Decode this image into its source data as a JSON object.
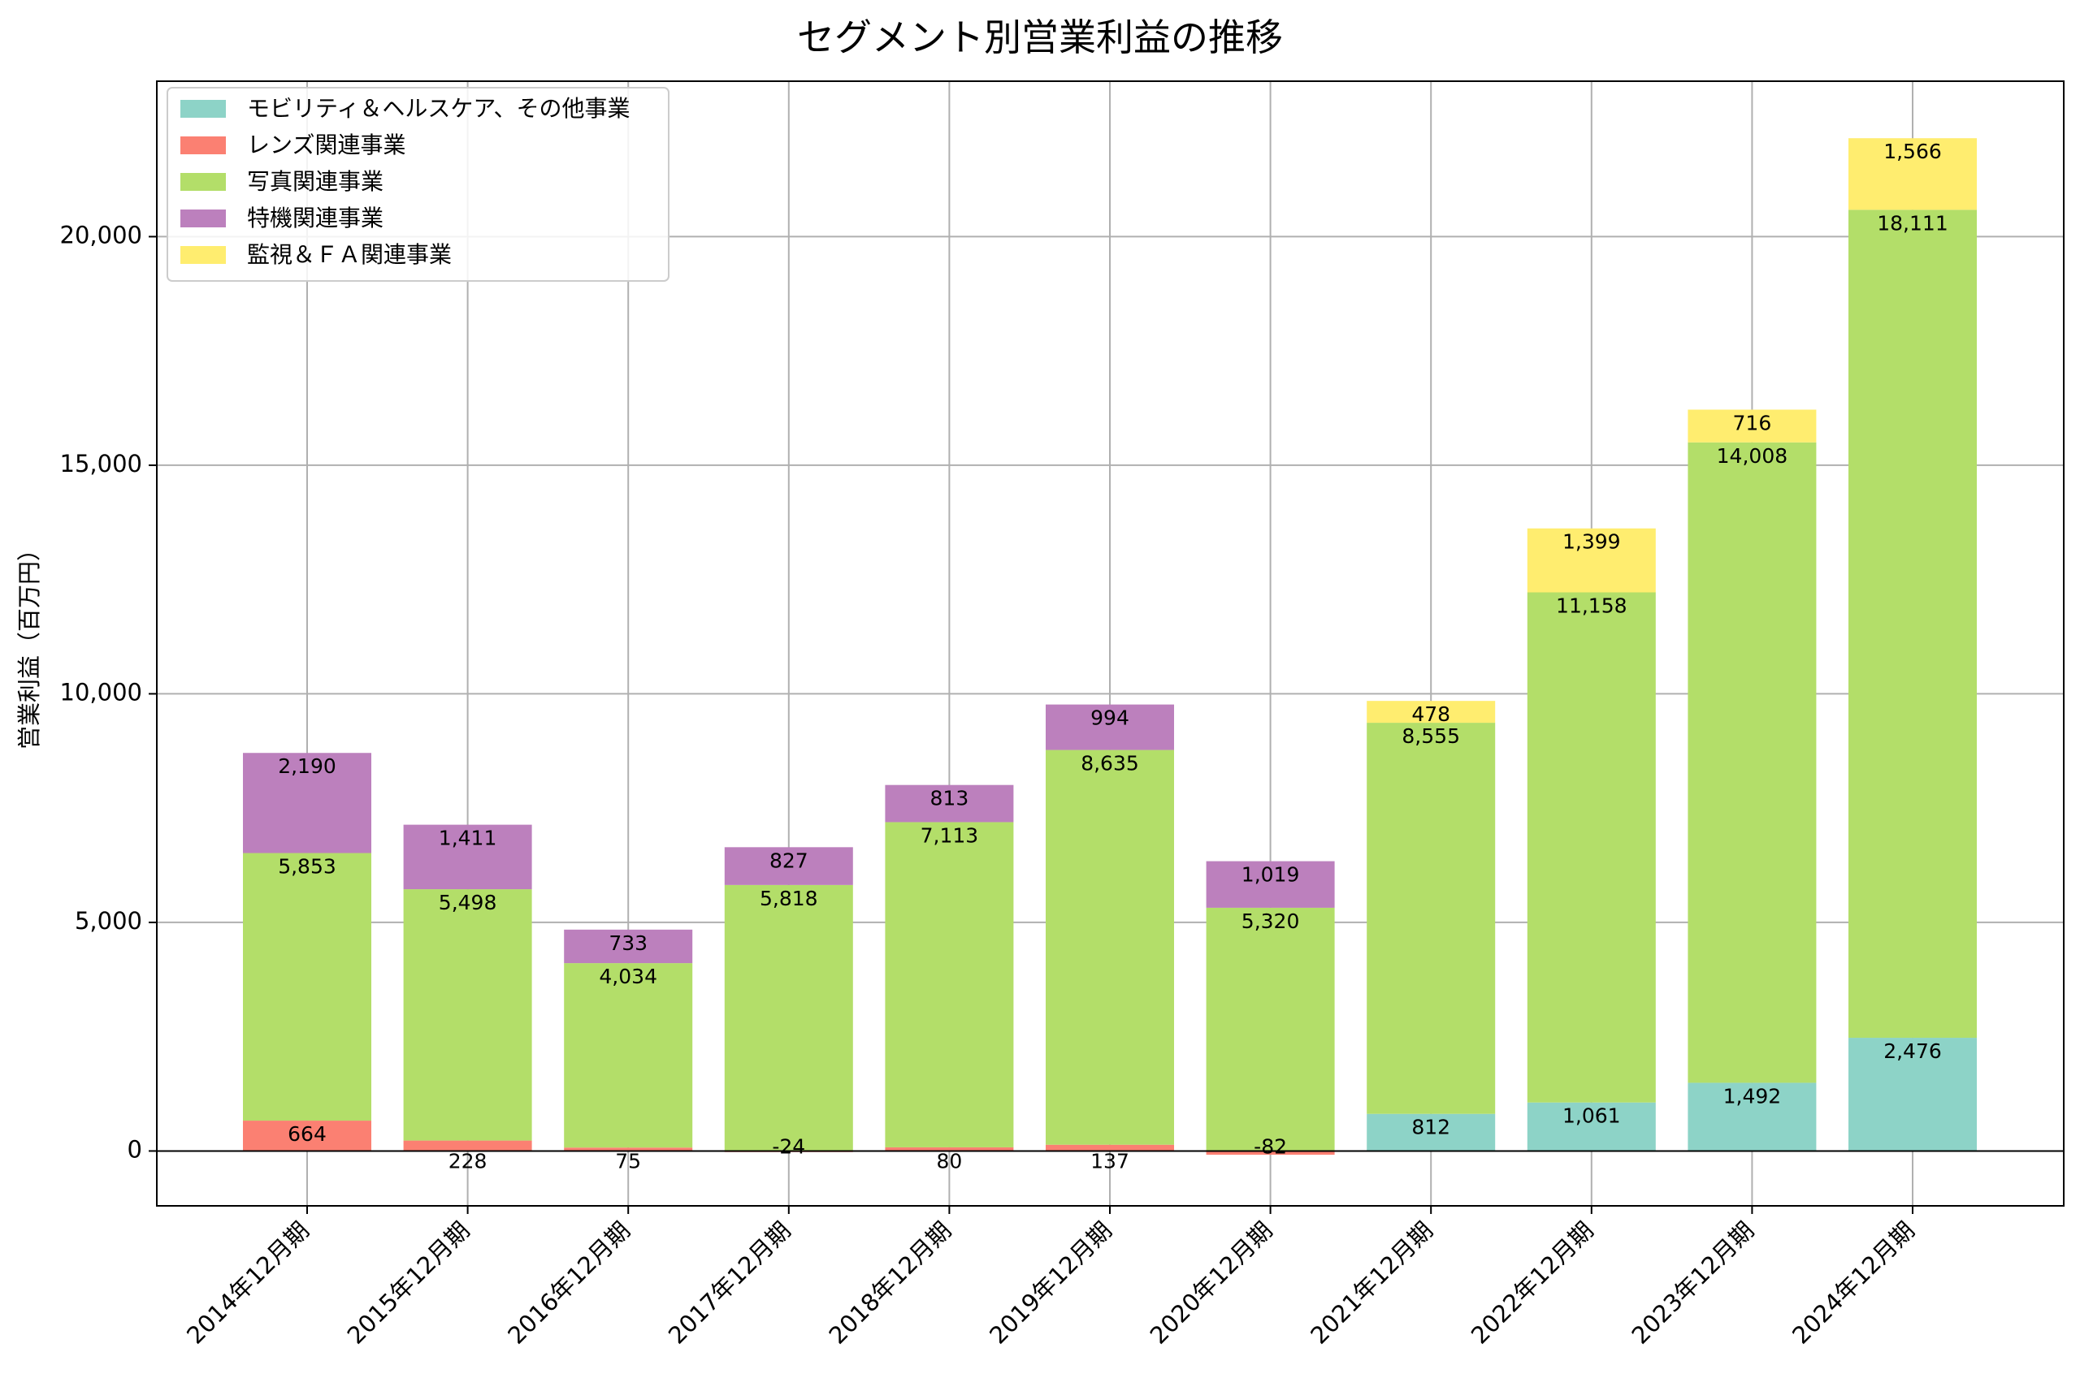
{
  "chart_data": {
    "type": "bar",
    "stacked": true,
    "title": "セグメント別営業利益の推移",
    "xlabel": "",
    "ylabel": "営業利益（百万円）",
    "ylim": [
      -1200,
      23400
    ],
    "yticks": [
      0,
      5000,
      10000,
      15000,
      20000
    ],
    "ytick_labels": [
      "0",
      "5,000",
      "10,000",
      "15,000",
      "20,000"
    ],
    "grid": true,
    "legend_position": "top-left",
    "categories": [
      "2014年12月期",
      "2015年12月期",
      "2016年12月期",
      "2017年12月期",
      "2018年12月期",
      "2019年12月期",
      "2020年12月期",
      "2021年12月期",
      "2022年12月期",
      "2023年12月期",
      "2024年12月期"
    ],
    "series": [
      {
        "name": "モビリティ＆ヘルスケア、その他事業",
        "color": "#8dd3c7",
        "values": [
          null,
          null,
          null,
          null,
          null,
          null,
          null,
          812,
          1061,
          1492,
          2476
        ]
      },
      {
        "name": "レンズ関連事業",
        "color": "#fb8072",
        "values": [
          664,
          228,
          75,
          -24,
          80,
          137,
          -82,
          null,
          null,
          null,
          null
        ]
      },
      {
        "name": "写真関連事業",
        "color": "#b3de69",
        "values": [
          5853,
          5498,
          4034,
          5818,
          7113,
          8635,
          5320,
          8555,
          11158,
          14008,
          18111
        ]
      },
      {
        "name": "特機関連事業",
        "color": "#bc80bd",
        "values": [
          2190,
          1411,
          733,
          827,
          813,
          994,
          1019,
          null,
          null,
          null,
          null
        ]
      },
      {
        "name": "監視＆ＦＡ関連事業",
        "color": "#ffed6f",
        "values": [
          null,
          null,
          null,
          null,
          null,
          null,
          null,
          478,
          1399,
          716,
          1566
        ]
      }
    ]
  }
}
